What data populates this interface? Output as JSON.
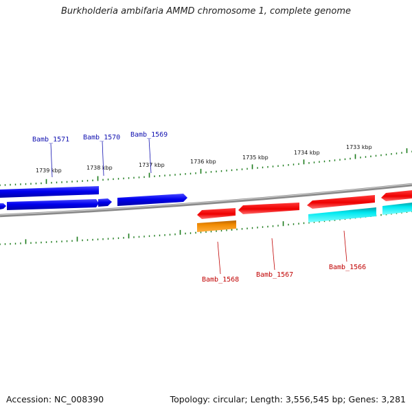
{
  "title": "Burkholderia ambifaria AMMD chromosome 1, complete genome",
  "footer": {
    "accession": "Accession: NC_008390",
    "summary": "Topology: circular; Length: 3,556,545 bp; Genes: 3,281"
  },
  "colors": {
    "backbone": "#808080",
    "tick": "#1a7a1a",
    "forward_gene": "#0000ee",
    "reverse_gene": "#ee0000",
    "reverse_alt_gene": "#f08a00",
    "reverse_cds": "#00e8f0",
    "forward_label": "#1010b0",
    "reverse_label": "#c00000"
  },
  "scale_labels": [
    "1739 kbp",
    "1738 kbp",
    "1737 kbp",
    "1736 kbp",
    "1735 kbp",
    "1734 kbp",
    "1733 kbp"
  ],
  "forward_genes": [
    {
      "label": "Bamb_1571",
      "color": "forward_gene"
    },
    {
      "label": "Bamb_1570",
      "color": "forward_gene"
    },
    {
      "label": "Bamb_1569",
      "color": "forward_gene"
    }
  ],
  "reverse_genes": [
    {
      "label": "Bamb_1568",
      "color": "reverse_alt_gene"
    },
    {
      "label": "Bamb_1567",
      "color": "reverse_gene"
    },
    {
      "label": "Bamb_1566",
      "color": "reverse_cds"
    }
  ]
}
